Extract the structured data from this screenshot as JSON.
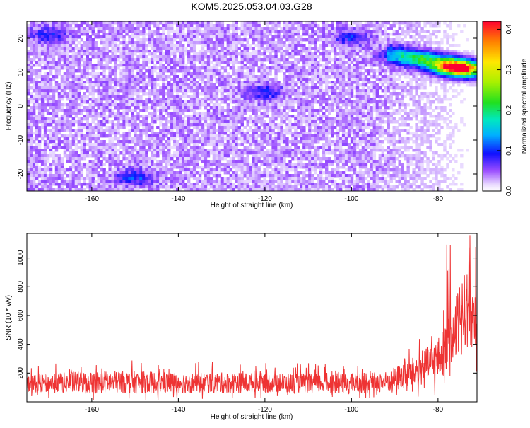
{
  "title": "KOM5.2025.053.04.03.G28",
  "chart_data": [
    {
      "type": "heatmap",
      "xlabel": "Height of straight line (km)",
      "ylabel": "Frequency (Hz)",
      "xlim": [
        -175,
        -71
      ],
      "ylim": [
        -25,
        25
      ],
      "x_ticks": [
        -160,
        -140,
        -120,
        -100,
        -80
      ],
      "y_ticks": [
        -20,
        -10,
        0,
        10,
        20
      ],
      "colorbar": {
        "label": "Normalized spectral amplitude",
        "range": [
          0,
          0.42
        ],
        "ticks": [
          0.0,
          0.1,
          0.2,
          0.3,
          0.4
        ],
        "tick_labels": [
          "0.0",
          "0.1",
          "0.2",
          "0.3",
          "0.4"
        ]
      },
      "features": [
        {
          "x": -74,
          "y": 11,
          "value": 0.4
        },
        {
          "x": -78,
          "y": 12,
          "value": 0.3
        },
        {
          "x": -84,
          "y": 14,
          "value": 0.15
        },
        {
          "x": -90,
          "y": 15,
          "value": 0.08
        },
        {
          "x": -100,
          "y": 20,
          "value": 0.07
        },
        {
          "x": -120,
          "y": 4,
          "value": 0.07
        },
        {
          "x": -150,
          "y": -21,
          "value": 0.08
        },
        {
          "x": -170,
          "y": 21,
          "value": 0.07
        }
      ]
    },
    {
      "type": "line",
      "xlabel": "Height of straight line (km)",
      "ylabel": "SNR (10 * v/v)",
      "xlim": [
        -175,
        -71
      ],
      "ylim": [
        0,
        1170
      ],
      "x_ticks": [
        -160,
        -140,
        -120,
        -100,
        -80
      ],
      "y_ticks": [
        200,
        400,
        600,
        800,
        1000
      ],
      "color": "#ee3333",
      "profile": [
        {
          "x": -175,
          "mean": 120,
          "amp": 120
        },
        {
          "x": -160,
          "mean": 130,
          "amp": 160
        },
        {
          "x": -140,
          "mean": 125,
          "amp": 150
        },
        {
          "x": -120,
          "mean": 125,
          "amp": 140
        },
        {
          "x": -100,
          "mean": 120,
          "amp": 140
        },
        {
          "x": -92,
          "mean": 130,
          "amp": 150
        },
        {
          "x": -85,
          "mean": 200,
          "amp": 220
        },
        {
          "x": -80,
          "mean": 280,
          "amp": 300
        },
        {
          "x": -77,
          "mean": 400,
          "amp": 380
        },
        {
          "x": -74,
          "mean": 620,
          "amp": 540
        },
        {
          "x": -71,
          "mean": 560,
          "amp": 420
        }
      ]
    }
  ]
}
